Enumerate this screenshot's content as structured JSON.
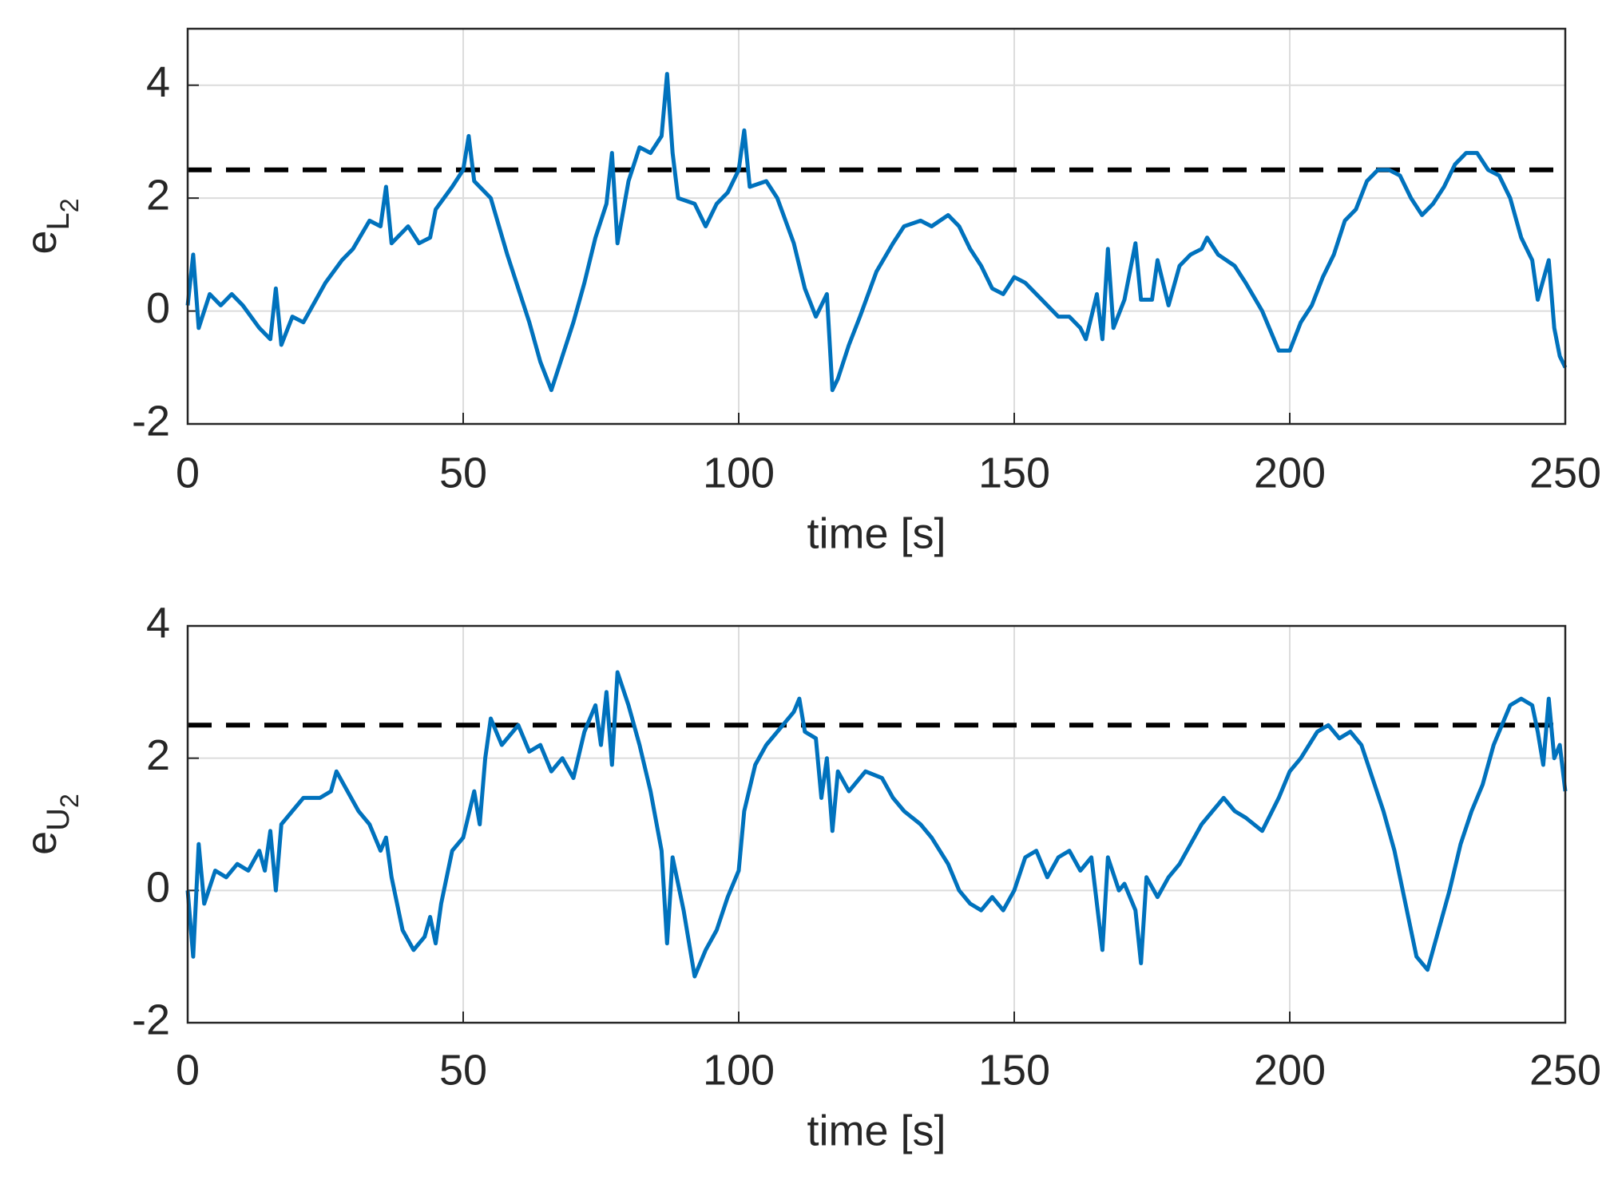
{
  "chart_data": [
    {
      "type": "line",
      "xlabel": "time [s]",
      "ylabel": {
        "base": "e",
        "sub": "L",
        "subsub": "2"
      },
      "xlim": [
        0,
        250
      ],
      "xticks": [
        0,
        50,
        100,
        150,
        200,
        250
      ],
      "ylim": [
        -2,
        5
      ],
      "yticks": [
        -2,
        0,
        2,
        4
      ],
      "grid": true,
      "hlines": [
        {
          "value": 2.5,
          "color": "#000000",
          "style": "dashed"
        }
      ],
      "x": [
        0,
        1,
        2,
        4,
        6,
        8,
        10,
        13,
        15,
        16,
        17,
        19,
        21,
        25,
        28,
        30,
        33,
        35,
        36,
        37,
        40,
        42,
        44,
        45,
        48,
        50,
        51,
        52,
        55,
        58,
        62,
        64,
        66,
        68,
        70,
        72,
        74,
        76,
        77,
        78,
        80,
        82,
        84,
        86,
        87,
        88,
        89,
        92,
        94,
        96,
        98,
        100,
        101,
        102,
        105,
        107,
        110,
        112,
        114,
        116,
        117,
        118,
        120,
        122,
        125,
        128,
        130,
        133,
        135,
        138,
        140,
        142,
        144,
        146,
        148,
        150,
        152,
        155,
        158,
        160,
        162,
        163,
        165,
        166,
        167,
        168,
        170,
        172,
        173,
        175,
        176,
        178,
        180,
        182,
        184,
        185,
        187,
        190,
        192,
        195,
        198,
        200,
        202,
        204,
        206,
        208,
        210,
        212,
        214,
        216,
        218,
        220,
        222,
        224,
        226,
        228,
        230,
        232,
        234,
        236,
        238,
        240,
        242,
        244,
        245,
        247,
        248,
        249,
        250
      ],
      "series": [
        {
          "color": "#0072bd",
          "values": [
            0.1,
            1.0,
            -0.3,
            0.3,
            0.1,
            0.3,
            0.1,
            -0.3,
            -0.5,
            0.4,
            -0.6,
            -0.1,
            -0.2,
            0.5,
            0.9,
            1.1,
            1.6,
            1.5,
            2.2,
            1.2,
            1.5,
            1.2,
            1.3,
            1.8,
            2.2,
            2.5,
            3.1,
            2.3,
            2.0,
            1.0,
            -0.2,
            -0.9,
            -1.4,
            -0.8,
            -0.2,
            0.5,
            1.3,
            1.9,
            2.8,
            1.2,
            2.3,
            2.9,
            2.8,
            3.1,
            4.2,
            2.8,
            2.0,
            1.9,
            1.5,
            1.9,
            2.1,
            2.5,
            3.2,
            2.2,
            2.3,
            2.0,
            1.2,
            0.4,
            -0.1,
            0.3,
            -1.4,
            -1.2,
            -0.6,
            -0.1,
            0.7,
            1.2,
            1.5,
            1.6,
            1.5,
            1.7,
            1.5,
            1.1,
            0.8,
            0.4,
            0.3,
            0.6,
            0.5,
            0.2,
            -0.1,
            -0.1,
            -0.3,
            -0.5,
            0.3,
            -0.5,
            1.1,
            -0.3,
            0.2,
            1.2,
            0.2,
            0.2,
            0.9,
            0.1,
            0.8,
            1.0,
            1.1,
            1.3,
            1.0,
            0.8,
            0.5,
            0.0,
            -0.7,
            -0.7,
            -0.2,
            0.1,
            0.6,
            1.0,
            1.6,
            1.8,
            2.3,
            2.5,
            2.5,
            2.4,
            2.0,
            1.7,
            1.9,
            2.2,
            2.6,
            2.8,
            2.8,
            2.5,
            2.4,
            2.0,
            1.3,
            0.9,
            0.2,
            0.9,
            -0.3,
            -0.8,
            -1.0
          ]
        }
      ]
    },
    {
      "type": "line",
      "xlabel": "time [s]",
      "ylabel": {
        "base": "e",
        "sub": "U",
        "subsub": "2"
      },
      "xlim": [
        0,
        250
      ],
      "xticks": [
        0,
        50,
        100,
        150,
        200,
        250
      ],
      "ylim": [
        -2,
        4
      ],
      "yticks": [
        -2,
        0,
        2,
        4
      ],
      "grid": true,
      "hlines": [
        {
          "value": 2.5,
          "color": "#000000",
          "style": "dashed"
        }
      ],
      "x": [
        0,
        1,
        2,
        3,
        5,
        7,
        9,
        11,
        13,
        14,
        15,
        16,
        17,
        19,
        21,
        24,
        26,
        27,
        29,
        31,
        33,
        35,
        36,
        37,
        39,
        41,
        43,
        44,
        45,
        46,
        48,
        50,
        52,
        53,
        54,
        55,
        57,
        60,
        62,
        64,
        66,
        68,
        70,
        72,
        74,
        75,
        76,
        77,
        78,
        80,
        82,
        84,
        86,
        87,
        88,
        90,
        92,
        94,
        96,
        98,
        100,
        101,
        103,
        105,
        108,
        110,
        111,
        112,
        114,
        115,
        116,
        117,
        118,
        120,
        123,
        126,
        128,
        130,
        133,
        135,
        138,
        140,
        142,
        144,
        146,
        148,
        150,
        152,
        154,
        156,
        158,
        160,
        162,
        164,
        166,
        167,
        169,
        170,
        172,
        173,
        174,
        176,
        178,
        180,
        182,
        184,
        186,
        188,
        190,
        192,
        195,
        198,
        200,
        202,
        205,
        207,
        209,
        211,
        213,
        215,
        217,
        219,
        221,
        223,
        225,
        227,
        229,
        231,
        233,
        235,
        237,
        240,
        242,
        244,
        245,
        246,
        247,
        248,
        249,
        250
      ],
      "series": [
        {
          "color": "#0072bd",
          "values": [
            0.0,
            -1.0,
            0.7,
            -0.2,
            0.3,
            0.2,
            0.4,
            0.3,
            0.6,
            0.3,
            0.9,
            0.0,
            1.0,
            1.2,
            1.4,
            1.4,
            1.5,
            1.8,
            1.5,
            1.2,
            1.0,
            0.6,
            0.8,
            0.2,
            -0.6,
            -0.9,
            -0.7,
            -0.4,
            -0.8,
            -0.2,
            0.6,
            0.8,
            1.5,
            1.0,
            2.0,
            2.6,
            2.2,
            2.5,
            2.1,
            2.2,
            1.8,
            2.0,
            1.7,
            2.4,
            2.8,
            2.2,
            3.0,
            1.9,
            3.3,
            2.8,
            2.2,
            1.5,
            0.6,
            -0.8,
            0.5,
            -0.3,
            -1.3,
            -0.9,
            -0.6,
            -0.1,
            0.3,
            1.2,
            1.9,
            2.2,
            2.5,
            2.7,
            2.9,
            2.4,
            2.3,
            1.4,
            2.0,
            0.9,
            1.8,
            1.5,
            1.8,
            1.7,
            1.4,
            1.2,
            1.0,
            0.8,
            0.4,
            0.0,
            -0.2,
            -0.3,
            -0.1,
            -0.3,
            0.0,
            0.5,
            0.6,
            0.2,
            0.5,
            0.6,
            0.3,
            0.5,
            -0.9,
            0.5,
            0.0,
            0.1,
            -0.3,
            -1.1,
            0.2,
            -0.1,
            0.2,
            0.4,
            0.7,
            1.0,
            1.2,
            1.4,
            1.2,
            1.1,
            0.9,
            1.4,
            1.8,
            2.0,
            2.4,
            2.5,
            2.3,
            2.4,
            2.2,
            1.7,
            1.2,
            0.6,
            -0.2,
            -1.0,
            -1.2,
            -0.6,
            0.0,
            0.7,
            1.2,
            1.6,
            2.2,
            2.8,
            2.9,
            2.8,
            2.4,
            1.9,
            2.9,
            2.0,
            2.2,
            1.5
          ]
        }
      ]
    }
  ]
}
